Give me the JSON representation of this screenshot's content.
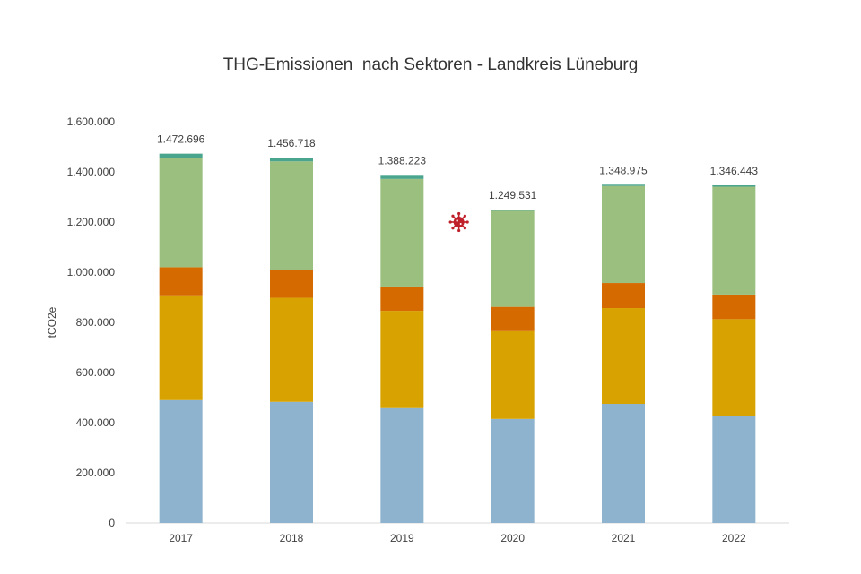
{
  "chart_data": {
    "type": "bar",
    "stacked": true,
    "title": "THG-Emissionen  nach Sektoren - Landkreis Lüneburg",
    "ylabel": "tCO2e",
    "xlabel": "",
    "ylim": [
      0,
      1600000
    ],
    "grid": false,
    "legend": "none",
    "yticks": [
      "0",
      "200.000",
      "400.000",
      "600.000",
      "800.000",
      "1.000.000",
      "1.200.000",
      "1.400.000",
      "1.600.000"
    ],
    "categories": [
      "2017",
      "2018",
      "2019",
      "2020",
      "2021",
      "2022"
    ],
    "totals_labels": [
      "1.472.696",
      "1.456.718",
      "1.388.223",
      "1.249.531",
      "1.348.975",
      "1.346.443"
    ],
    "series": [
      {
        "color": "#8db3ce",
        "values": [
          490000,
          483000,
          458000,
          415000,
          475000,
          425000
        ]
      },
      {
        "color": "#d8a300",
        "values": [
          418000,
          415000,
          388000,
          350000,
          382000,
          388000
        ]
      },
      {
        "color": "#d46a00",
        "values": [
          112000,
          112000,
          97000,
          97000,
          100000,
          98000
        ]
      },
      {
        "color": "#9bbf7e",
        "values": [
          435000,
          432000,
          429000,
          383000,
          387000,
          430000
        ]
      },
      {
        "color": "#4aa58e",
        "values": [
          17696,
          14718,
          16223,
          4531,
          4975,
          5443
        ]
      }
    ],
    "annotation": {
      "category": "2020",
      "icon": "virus-icon",
      "color": "#c0202a"
    }
  }
}
